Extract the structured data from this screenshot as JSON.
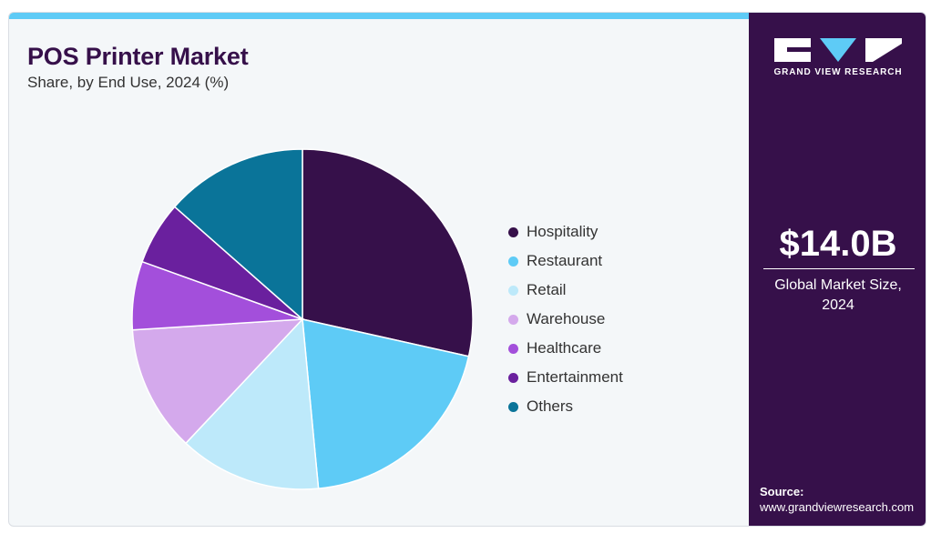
{
  "header": {
    "title": "POS Printer Market",
    "subtitle": "Share, by End Use, 2024 (%)"
  },
  "chart_data": {
    "type": "pie",
    "title": "POS Printer Market",
    "subtitle": "Share, by End Use, 2024 (%)",
    "legend_position": "right",
    "categories": [
      "Hospitality",
      "Restaurant",
      "Retail",
      "Warehouse",
      "Healthcare",
      "Entertainment",
      "Others"
    ],
    "values": [
      28.5,
      20.0,
      13.5,
      12.0,
      6.5,
      6.0,
      13.5
    ],
    "colors": [
      "#36104a",
      "#5ecbf6",
      "#bde9fa",
      "#d4a9ec",
      "#a34fdb",
      "#6a209e",
      "#0a7499"
    ]
  },
  "sidebar": {
    "brand": "GRAND VIEW RESEARCH",
    "market_value": "$14.0B",
    "market_label": "Global Market Size, 2024",
    "source_label": "Source:",
    "source_url": "www.grandviewresearch.com"
  }
}
